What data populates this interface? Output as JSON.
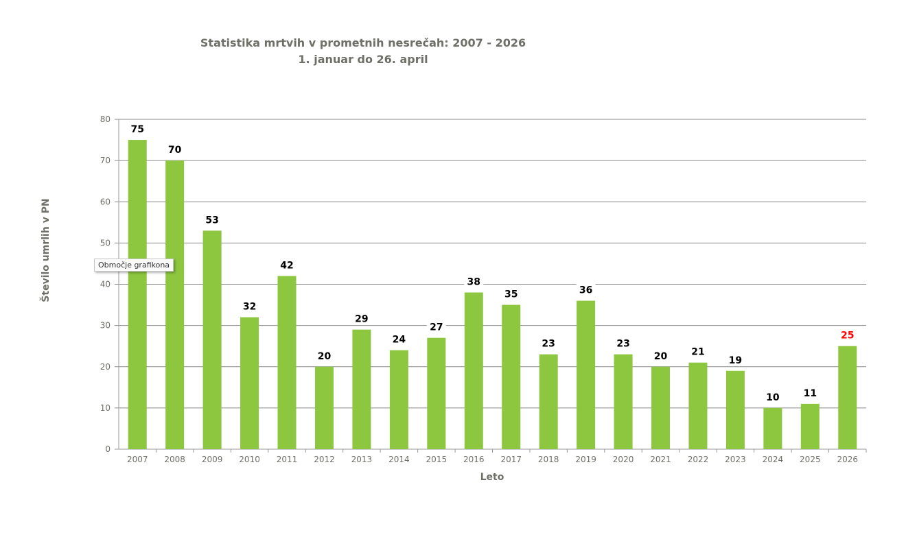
{
  "chart_data": {
    "type": "bar",
    "title": "Statistika mrtvih v prometnih nesrečah: 2007 - 2026",
    "subtitle": "1. januar do 26. april",
    "xlabel": "Leto",
    "ylabel": "Število umrlih v PN",
    "ylim": [
      0,
      80
    ],
    "yticks": [
      0,
      10,
      20,
      30,
      40,
      50,
      60,
      70,
      80
    ],
    "grid": true,
    "categories": [
      "2007",
      "2008",
      "2009",
      "2010",
      "2011",
      "2012",
      "2013",
      "2014",
      "2015",
      "2016",
      "2017",
      "2018",
      "2019",
      "2020",
      "2021",
      "2022",
      "2023",
      "2024",
      "2025",
      "2026"
    ],
    "values": [
      75,
      70,
      53,
      32,
      42,
      20,
      29,
      24,
      27,
      38,
      35,
      23,
      36,
      23,
      20,
      21,
      19,
      10,
      11,
      25
    ],
    "bar_color": "#8dc63f",
    "label_color": "#000000",
    "highlight_label_color": "#ff0000",
    "highlight_category": "2026"
  },
  "tooltip": "Območje grafikona"
}
